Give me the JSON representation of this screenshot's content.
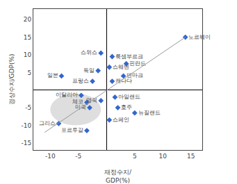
{
  "chart_data": {
    "type": "scatter",
    "x_label": "재정수지/\nGDP(%)",
    "y_label": "경상수지/GDP(%)",
    "series": [
      {
        "type": "scatter",
        "marker": "diamond",
        "color": "#3366cc",
        "x": [
          14,
          -1,
          1,
          3.5,
          -1.5,
          0.5,
          -8,
          -2.5,
          3,
          1,
          -4.5,
          -1,
          -3.5,
          -3,
          1.5,
          2,
          5,
          0.5,
          -8.5,
          -3.5
        ],
        "values": [
          15,
          10.5,
          9.5,
          7.5,
          5.5,
          6.5,
          4,
          2.5,
          4,
          2.5,
          -1.5,
          -3,
          -3.5,
          -5,
          -2,
          -5,
          -6.5,
          -8.5,
          -9.5,
          -11.5
        ],
        "labels": [
          "노르웨이",
          "스위스",
          "룩셈부르크",
          "핀란드",
          "독일",
          "스웨덴",
          "일본",
          "프랑스",
          "덴마크",
          "캐나다",
          "이탈리아",
          "영국",
          "체코",
          "미국",
          "아일랜드",
          "호주",
          "뉴질랜드",
          "스페인",
          "그리스",
          "포르투갈"
        ]
      },
      {
        "type": "line",
        "color": "#999999",
        "x": [
          -11,
          14
        ],
        "values": [
          -12,
          15
        ]
      }
    ],
    "ellipse": {
      "x": -5.5,
      "y": -5.5,
      "width": 9,
      "height": 9,
      "color": "#cccccc"
    },
    "xlim": [
      -13,
      17
    ],
    "ylim": [
      -17,
      23
    ],
    "xticks": [
      -10,
      -5,
      5,
      10,
      15
    ],
    "yticks": [
      -15,
      -10,
      -5,
      5,
      10,
      15,
      20
    ],
    "grid": false
  }
}
